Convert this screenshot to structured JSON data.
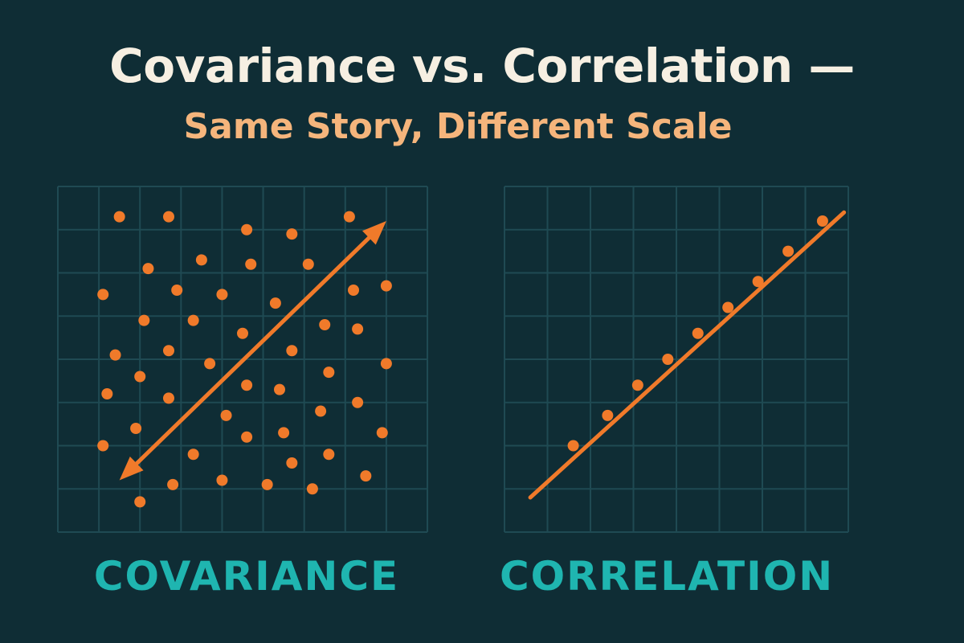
{
  "title": "Covariance vs. Correlation —",
  "subtitle": "Same Story, Different Scale",
  "colors": {
    "background": "#0f2d35",
    "grid": "#1f4a53",
    "accent": "#f07a2a",
    "title": "#f6efe2",
    "subtitle": "#f5b57c",
    "label": "#1fb5b0"
  },
  "chart_data": [
    {
      "type": "scatter",
      "label": "COVARIANCE",
      "grid": true,
      "xlim": [
        0,
        9
      ],
      "ylim": [
        0,
        8
      ],
      "arrow": {
        "style": "double-headed",
        "from": [
          1.5,
          1.2
        ],
        "to": [
          8.0,
          7.2
        ]
      },
      "points": [
        [
          1.5,
          7.3
        ],
        [
          2.7,
          7.3
        ],
        [
          4.6,
          7.0
        ],
        [
          5.7,
          6.9
        ],
        [
          7.1,
          7.3
        ],
        [
          3.5,
          6.3
        ],
        [
          2.2,
          6.1
        ],
        [
          4.7,
          6.2
        ],
        [
          6.1,
          6.2
        ],
        [
          1.1,
          5.5
        ],
        [
          2.9,
          5.6
        ],
        [
          4.0,
          5.5
        ],
        [
          5.3,
          5.3
        ],
        [
          7.2,
          5.6
        ],
        [
          8.0,
          5.7
        ],
        [
          2.1,
          4.9
        ],
        [
          3.3,
          4.9
        ],
        [
          4.5,
          4.6
        ],
        [
          6.5,
          4.8
        ],
        [
          7.3,
          4.7
        ],
        [
          1.4,
          4.1
        ],
        [
          2.7,
          4.2
        ],
        [
          3.7,
          3.9
        ],
        [
          5.7,
          4.2
        ],
        [
          8.0,
          3.9
        ],
        [
          2.0,
          3.6
        ],
        [
          6.6,
          3.7
        ],
        [
          1.2,
          3.2
        ],
        [
          2.7,
          3.1
        ],
        [
          4.6,
          3.4
        ],
        [
          5.4,
          3.3
        ],
        [
          4.1,
          2.7
        ],
        [
          6.4,
          2.8
        ],
        [
          7.3,
          3.0
        ],
        [
          1.9,
          2.4
        ],
        [
          4.6,
          2.2
        ],
        [
          5.5,
          2.3
        ],
        [
          7.9,
          2.3
        ],
        [
          1.1,
          2.0
        ],
        [
          3.3,
          1.8
        ],
        [
          5.7,
          1.6
        ],
        [
          6.6,
          1.8
        ],
        [
          2.8,
          1.1
        ],
        [
          4.0,
          1.2
        ],
        [
          5.1,
          1.1
        ],
        [
          6.2,
          1.0
        ],
        [
          7.5,
          1.3
        ],
        [
          2.0,
          0.7
        ]
      ]
    },
    {
      "type": "scatter",
      "label": "CORRELATION",
      "grid": true,
      "xlim": [
        0,
        8
      ],
      "ylim": [
        0,
        8
      ],
      "trendline": {
        "from": [
          0.6,
          0.8
        ],
        "to": [
          7.9,
          7.4
        ]
      },
      "points": [
        [
          1.6,
          2.0
        ],
        [
          2.4,
          2.7
        ],
        [
          3.1,
          3.4
        ],
        [
          3.8,
          4.0
        ],
        [
          4.5,
          4.6
        ],
        [
          5.2,
          5.2
        ],
        [
          5.9,
          5.8
        ],
        [
          6.6,
          6.5
        ],
        [
          7.4,
          7.2
        ]
      ]
    }
  ]
}
